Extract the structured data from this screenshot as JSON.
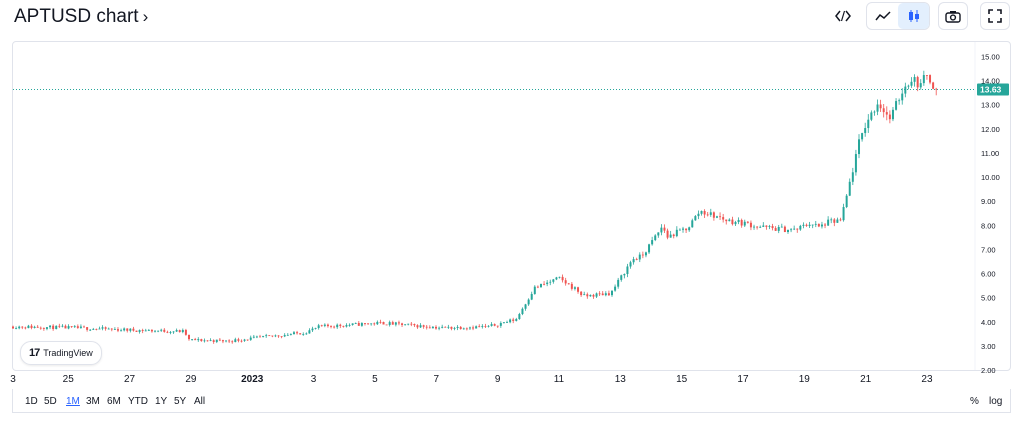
{
  "header": {
    "title": "APTUSD chart",
    "chevron": "›",
    "embed_icon": "code-icon",
    "line_icon": "line-chart-icon",
    "candle_icon": "candlestick-icon",
    "camera_icon": "camera-icon",
    "fullscreen_icon": "fullscreen-icon"
  },
  "colors": {
    "up": "#26a69a",
    "down": "#ef5350",
    "price_line": "#26a69a",
    "axis_text": "#131722"
  },
  "logo": {
    "mark": "17",
    "text": "TradingView"
  },
  "timeframes": [
    "1D",
    "5D",
    "1M",
    "3M",
    "6M",
    "YTD",
    "1Y",
    "5Y",
    "All"
  ],
  "active_timeframe": "1M",
  "options": {
    "percent": "%",
    "log": "log"
  },
  "chart_data": {
    "type": "candlestick",
    "symbol": "APTUSD",
    "last_price": 13.63,
    "last_price_label": "13.63",
    "y_ticks": [
      "15.00",
      "14.00",
      "13.00",
      "12.00",
      "11.00",
      "10.00",
      "9.00",
      "8.00",
      "7.00",
      "6.00",
      "5.00",
      "4.00",
      "3.00",
      "2.00"
    ],
    "ylim": [
      2.0,
      15.6
    ],
    "x_ticks": [
      "3",
      "25",
      "27",
      "29",
      "2023",
      "3",
      "5",
      "7",
      "9",
      "11",
      "13",
      "15",
      "17",
      "19",
      "21",
      "23"
    ],
    "x_tick_days": [
      0,
      1.8,
      3.8,
      5.8,
      7.8,
      9.8,
      11.8,
      13.8,
      15.8,
      17.8,
      19.8,
      21.8,
      23.8,
      25.8,
      27.8,
      29.8
    ],
    "xlim": [
      0,
      31.3
    ],
    "series": [
      {
        "name": "APTUSD",
        "x_day": [
          0,
          2,
          4,
          5.6,
          5.7,
          7,
          9.5,
          10,
          12,
          14,
          15.5,
          15.8,
          16.4,
          17,
          17.8,
          18.4,
          18.6,
          19.5,
          20.2,
          20.5,
          21.2,
          21.3,
          22,
          22.4,
          23.3,
          23.8,
          24.5,
          25.5,
          26,
          26.3,
          26.5,
          27,
          27.6,
          27.8,
          28.2,
          28.6,
          29,
          29.3,
          29.6,
          29.8,
          30.1
        ],
        "price": [
          3.8,
          3.75,
          3.65,
          3.6,
          3.25,
          3.2,
          3.55,
          3.8,
          3.95,
          3.75,
          3.8,
          3.9,
          4.1,
          5.4,
          5.8,
          5.3,
          5.05,
          5.2,
          6.6,
          6.7,
          8.0,
          7.5,
          7.9,
          8.6,
          8.2,
          8.1,
          7.9,
          7.8,
          8.1,
          7.9,
          8.1,
          8.2,
          11.5,
          12.2,
          13.1,
          12.4,
          13.6,
          14.1,
          13.8,
          14.3,
          13.63
        ]
      }
    ]
  }
}
